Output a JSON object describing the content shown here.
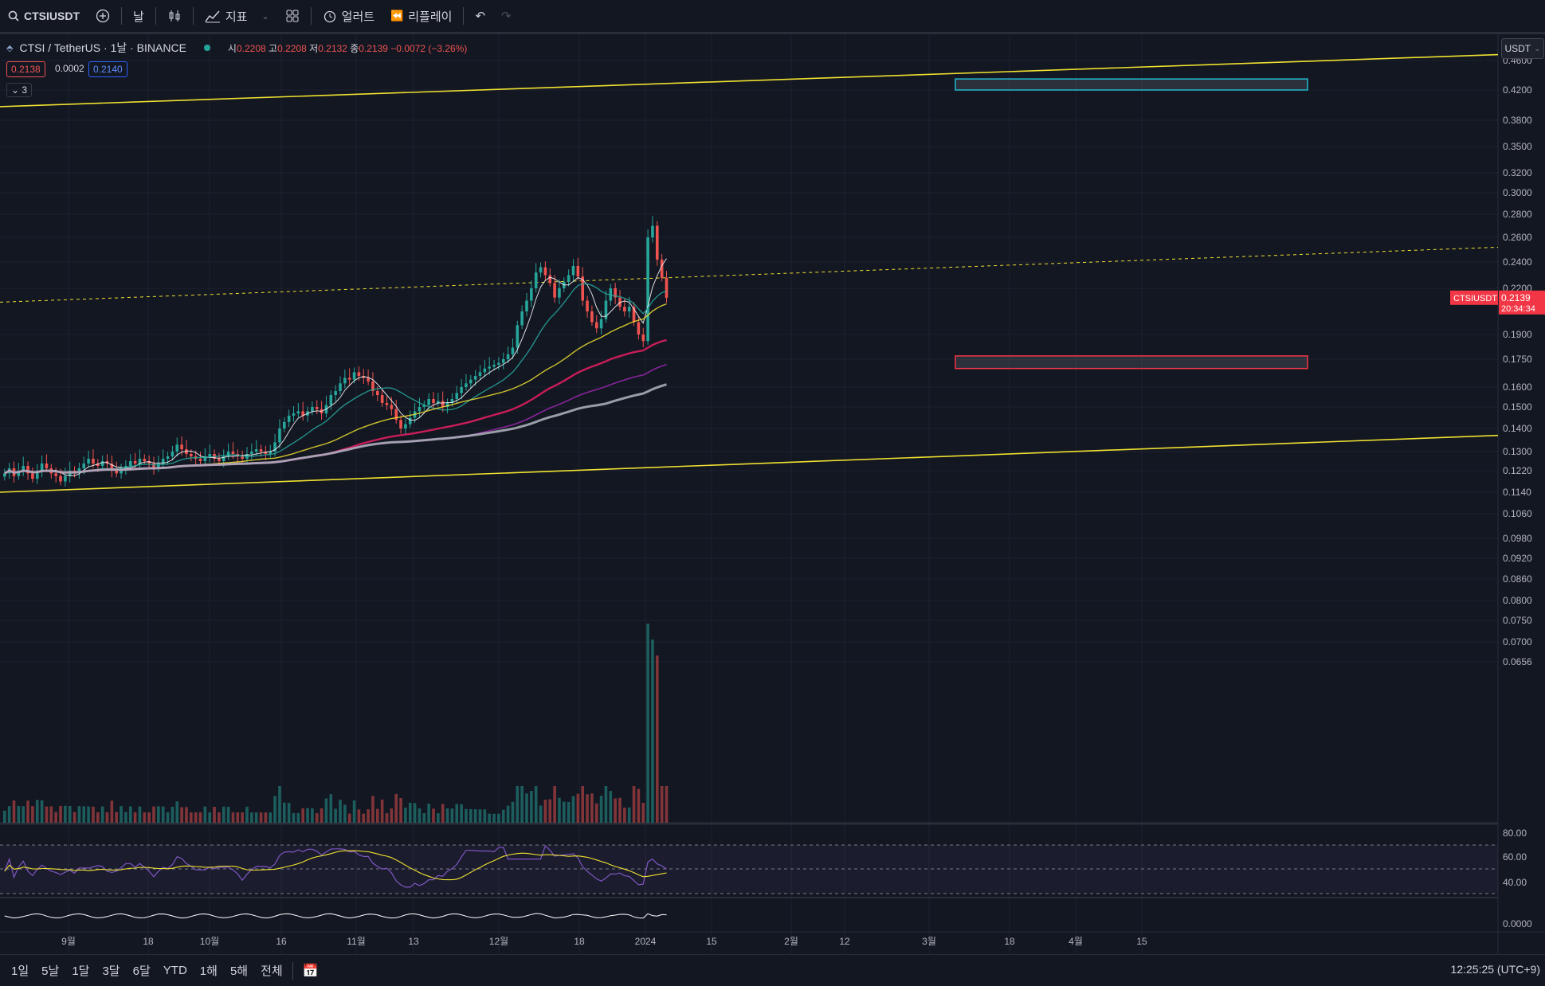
{
  "toolbar": {
    "symbol": "CTSIUSDT",
    "interval": "날",
    "indicators": "지표",
    "alert": "얼러트",
    "replay": "리플레이"
  },
  "legend": {
    "title": "CTSI / TetherUS · 1날 · BINANCE",
    "open_k": "시",
    "open": "0.2208",
    "high_k": "고",
    "high": "0.2208",
    "low_k": "저",
    "low": "0.2132",
    "close_k": "종",
    "close": "0.2139",
    "change": "−0.0072 (−3.26%)",
    "bid": "0.2138",
    "spread": "0.0002",
    "ask": "0.2140",
    "indicators_count": "3"
  },
  "currency": "USDT",
  "last_price": {
    "symbol": "CTSIUSDT",
    "price": "0.2139",
    "countdown": "20:34:34"
  },
  "range_buttons": [
    "1일",
    "5날",
    "1달",
    "3달",
    "6달",
    "YTD",
    "1해",
    "5해",
    "전체"
  ],
  "clock": "12:25:25 (UTC+9)",
  "colors": {
    "up": "#26a69a",
    "down": "#ef5350",
    "trendline": "#f0e130",
    "bg": "#131722"
  },
  "chart_data": {
    "type": "candlestick",
    "title": "CTSI / TetherUS · 1날 · BINANCE",
    "x_ticks": [
      "9월",
      "18",
      "10월",
      "16",
      "11월",
      "13",
      "12월",
      "18",
      "2024",
      "15",
      "2월",
      "12",
      "3월",
      "18",
      "4월",
      "15"
    ],
    "y_ticks": [
      0.46,
      0.42,
      0.38,
      0.35,
      0.32,
      0.3,
      0.28,
      0.26,
      0.24,
      0.22,
      0.19,
      0.175,
      0.16,
      0.15,
      0.14,
      0.13,
      0.122,
      0.114,
      0.106,
      0.098,
      0.092,
      0.086,
      0.08,
      0.075,
      0.07,
      0.0656
    ],
    "y_tick_labels": [
      "0.4600",
      "0.4200",
      "0.3800",
      "0.3500",
      "0.3200",
      "0.3000",
      "0.2800",
      "0.2600",
      "0.2400",
      "0.2200",
      "0.1900",
      "0.1750",
      "0.1600",
      "0.1500",
      "0.1400",
      "0.1300",
      "0.1220",
      "0.1140",
      "0.1060",
      "0.0980",
      "0.0920",
      "0.0860",
      "0.0800",
      "0.0750",
      "0.0700",
      "0.0656"
    ],
    "yscale": "log",
    "ylim": [
      0.0656,
      0.47
    ],
    "close_series_approx": [
      [
        0.121,
        0.123,
        0.12,
        0.122,
        0.124,
        0.121,
        0.119,
        0.122,
        0.125,
        0.123,
        0.121,
        0.12,
        0.118,
        0.12,
        0.122,
        0.121,
        0.123,
        0.125,
        0.127,
        0.125,
        0.124,
        0.126,
        0.125,
        0.122,
        0.121,
        0.123,
        0.124,
        0.126,
        0.125,
        0.127
      ],
      [
        0.126,
        0.125,
        0.123,
        0.125,
        0.127,
        0.128,
        0.13,
        0.133,
        0.131,
        0.129,
        0.128,
        0.127,
        0.126,
        0.128,
        0.129,
        0.127,
        0.126,
        0.128,
        0.13,
        0.129,
        0.128,
        0.127,
        0.129,
        0.13,
        0.131,
        0.13,
        0.129,
        0.13,
        0.134,
        0.14
      ],
      [
        0.143,
        0.146,
        0.147,
        0.148,
        0.146,
        0.148,
        0.15,
        0.149,
        0.147,
        0.151,
        0.156,
        0.158,
        0.162,
        0.165,
        0.164,
        0.168,
        0.166,
        0.165,
        0.163,
        0.158,
        0.156,
        0.152,
        0.151,
        0.149,
        0.144,
        0.14,
        0.142,
        0.145,
        0.148,
        0.15
      ],
      [
        0.151,
        0.154,
        0.152,
        0.153,
        0.15,
        0.152,
        0.154,
        0.157,
        0.16,
        0.162,
        0.164,
        0.166,
        0.168,
        0.17,
        0.171,
        0.172,
        0.173,
        0.175,
        0.178,
        0.182,
        0.196,
        0.205,
        0.212,
        0.22,
        0.232,
        0.236,
        0.23,
        0.224,
        0.214,
        0.22
      ],
      [
        0.225,
        0.23,
        0.237,
        0.229,
        0.212,
        0.205,
        0.198,
        0.194,
        0.2,
        0.212,
        0.22,
        0.214,
        0.208,
        0.205,
        0.208,
        0.198,
        0.19,
        0.186,
        0.26,
        0.27,
        0.242,
        0.228,
        0.2139
      ]
    ],
    "trendlines": [
      {
        "style": "solid",
        "from": [
          "start",
          0.398
        ],
        "to": [
          "end",
          0.468
        ]
      },
      {
        "style": "dashed",
        "from": [
          "start",
          0.211
        ],
        "to": [
          "end",
          0.252
        ]
      },
      {
        "style": "solid",
        "from": [
          "start",
          0.114
        ],
        "to": [
          "end",
          0.137
        ]
      }
    ],
    "zones": [
      {
        "color": "cyan",
        "price_range": [
          0.42,
          0.435
        ]
      },
      {
        "color": "red",
        "price_range": [
          0.17,
          0.177
        ]
      }
    ],
    "panes": [
      "price + moving averages",
      "volume",
      "RSI",
      "oscillator"
    ],
    "rsi_ticks": [
      80.0,
      60.0,
      40.0
    ],
    "rsi_tick_labels": [
      "80.00",
      "60.00",
      "40.00"
    ],
    "oscillator_tick_labels": [
      "0.0000"
    ]
  }
}
